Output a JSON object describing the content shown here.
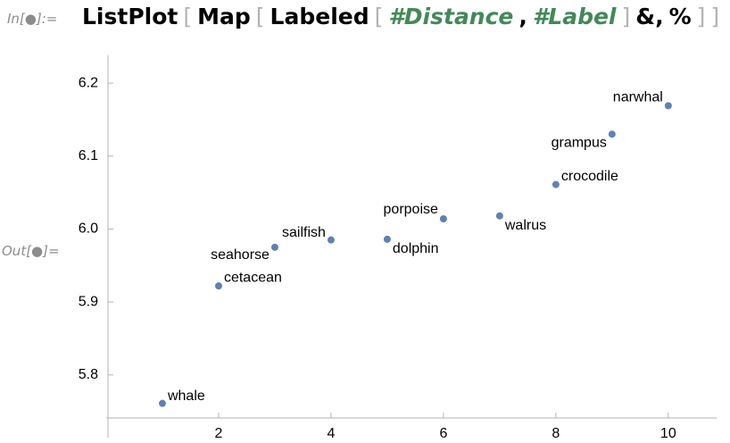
{
  "input_label": "In[●]:=",
  "code_tokens": [
    "ListPlot",
    "[",
    "Map",
    "[",
    "Labeled",
    "[",
    "#Distance",
    ",",
    "#Label",
    "]",
    "&,",
    "%",
    "]",
    "]"
  ],
  "output_label": "Out[●]=",
  "chart_data": {
    "type": "scatter",
    "x": [
      1,
      2,
      3,
      4,
      5,
      6,
      7,
      8,
      9,
      10
    ],
    "values": [
      5.761,
      5.922,
      5.975,
      5.985,
      5.986,
      6.014,
      6.018,
      6.061,
      6.13,
      6.169
    ],
    "labels": [
      "whale",
      "cetacean",
      "seahorse",
      "sailfish",
      "dolphin",
      "porpoise",
      "walrus",
      "crocodile",
      "grampus",
      "narwhal"
    ],
    "color": "#5e81b5",
    "xlim": [
      0,
      10.86
    ],
    "ylim": [
      5.741,
      6.238
    ],
    "xticks": [
      2,
      4,
      6,
      8,
      10
    ],
    "yticks": [
      5.8,
      5.9,
      {
        "value": 6,
        "label": "6.0"
      },
      6.1,
      6.2
    ]
  }
}
